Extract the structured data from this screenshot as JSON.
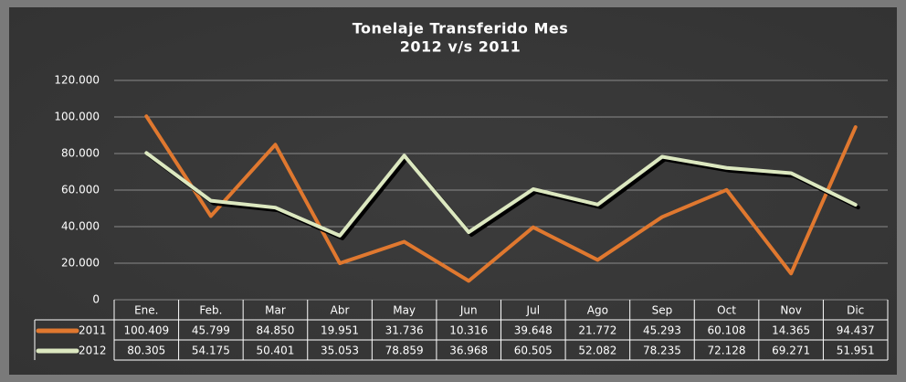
{
  "chart_data": {
    "type": "line",
    "title": "Tonelaje Transferido Mes",
    "subtitle": "2012 v/s 2011",
    "categories": [
      "Ene.",
      "Feb.",
      "Mar",
      "Abr",
      "May",
      "Jun",
      "Jul",
      "Ago",
      "Sep",
      "Oct",
      "Nov",
      "Dic"
    ],
    "series": [
      {
        "name": "2011",
        "color": "#e0782f",
        "values": [
          100409,
          45799,
          84850,
          19951,
          31736,
          10316,
          39648,
          21772,
          45293,
          60108,
          14365,
          94437
        ],
        "value_labels": [
          "100.409",
          "45.799",
          "84.850",
          "19.951",
          "31.736",
          "10.316",
          "39.648",
          "21.772",
          "45.293",
          "60.108",
          "14.365",
          "94.437"
        ]
      },
      {
        "name": "2012",
        "color": "#dce8c0",
        "values": [
          80305,
          54175,
          50401,
          35053,
          78859,
          36968,
          60505,
          52082,
          78235,
          72128,
          69271,
          51951
        ],
        "value_labels": [
          "80.305",
          "54.175",
          "50.401",
          "35.053",
          "78.859",
          "36.968",
          "60.505",
          "52.082",
          "78.235",
          "72.128",
          "69.271",
          "51.951"
        ]
      }
    ],
    "ylim": [
      0,
      120000
    ],
    "yticks": [
      0,
      {
        "value": 20000,
        "label": "20.000"
      },
      {
        "value": 40000,
        "label": "40.000"
      },
      {
        "value": 60000,
        "label": "60.000"
      },
      {
        "value": 80000,
        "label": "80.000"
      },
      {
        "value": 100000,
        "label": "100.000"
      },
      {
        "value": 120000,
        "label": "120.000"
      }
    ],
    "grid": true,
    "data_table": true
  }
}
